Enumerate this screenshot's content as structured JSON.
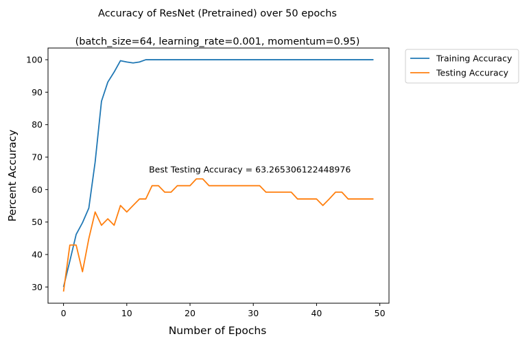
{
  "chart_data": {
    "type": "line",
    "title_line1": "Accuracy of ResNet (Pretrained) over 50 epochs",
    "title_line2": "(batch_size=64, learning_rate=0.001, momentum=0.95)",
    "xlabel": "Number of Epochs",
    "ylabel": "Percent Accuracy",
    "xlim": [
      -2.45,
      51.45
    ],
    "ylim": [
      25.0,
      103.6
    ],
    "xticks": [
      0,
      10,
      20,
      30,
      40,
      50
    ],
    "yticks": [
      30,
      40,
      50,
      60,
      70,
      80,
      90,
      100
    ],
    "legend_position": "outside-top-right",
    "annotation": {
      "text": "Best Testing Accuracy = 63.265306122448976",
      "x": 13.5,
      "y": 65.3
    },
    "series": [
      {
        "name": "Training Accuracy",
        "color": "#1f77b4",
        "x": [
          0,
          1,
          2,
          3,
          4,
          5,
          6,
          7,
          8,
          9,
          10,
          11,
          12,
          13,
          14,
          15,
          16,
          17,
          18,
          19,
          20,
          21,
          22,
          23,
          24,
          25,
          26,
          27,
          28,
          29,
          30,
          31,
          32,
          33,
          34,
          35,
          36,
          37,
          38,
          39,
          40,
          41,
          42,
          43,
          44,
          45,
          46,
          47,
          48,
          49
        ],
        "values": [
          30.0,
          38.0,
          46.2,
          49.8,
          54.3,
          68.5,
          87.2,
          93.1,
          96.2,
          99.7,
          99.3,
          99.0,
          99.3,
          100,
          100,
          100,
          100,
          100,
          100,
          100,
          100,
          100,
          100,
          100,
          100,
          100,
          100,
          100,
          100,
          100,
          100,
          100,
          100,
          100,
          100,
          100,
          100,
          100,
          100,
          100,
          100,
          100,
          100,
          100,
          100,
          100,
          100,
          100,
          100,
          100
        ]
      },
      {
        "name": "Testing Accuracy",
        "color": "#ff7f0e",
        "x": [
          0,
          1,
          2,
          3,
          4,
          5,
          6,
          7,
          8,
          9,
          10,
          11,
          12,
          13,
          14,
          15,
          16,
          17,
          18,
          19,
          20,
          21,
          22,
          23,
          24,
          25,
          26,
          27,
          28,
          29,
          30,
          31,
          32,
          33,
          34,
          35,
          36,
          37,
          38,
          39,
          40,
          41,
          42,
          43,
          44,
          45,
          46,
          47,
          48,
          49
        ],
        "values": [
          28.6,
          42.9,
          42.9,
          34.7,
          44.9,
          53.1,
          49.0,
          51.0,
          49.0,
          55.1,
          53.1,
          55.1,
          57.1,
          57.1,
          61.2,
          61.2,
          59.2,
          59.2,
          61.2,
          61.2,
          61.2,
          63.3,
          63.3,
          61.2,
          61.2,
          61.2,
          61.2,
          61.2,
          61.2,
          61.2,
          61.2,
          61.2,
          59.2,
          59.2,
          59.2,
          59.2,
          59.2,
          57.1,
          57.1,
          57.1,
          57.1,
          55.1,
          57.1,
          59.2,
          59.2,
          57.1,
          57.1,
          57.1,
          57.1,
          57.1
        ]
      }
    ]
  }
}
